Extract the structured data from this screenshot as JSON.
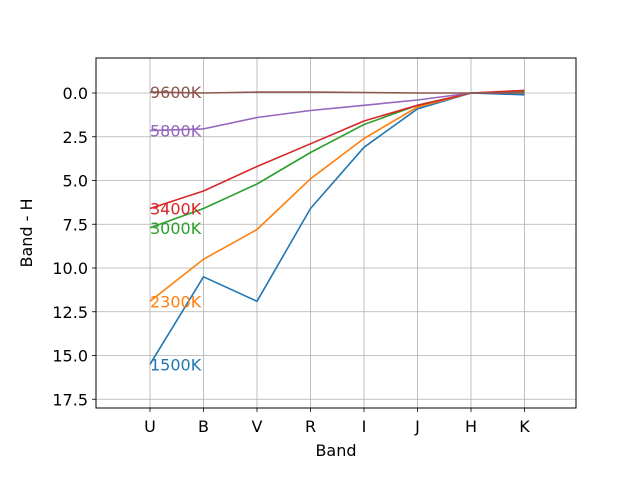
{
  "chart_data": {
    "type": "line",
    "title": "",
    "xlabel": "Band",
    "ylabel": "Band - H",
    "categories": [
      "U",
      "B",
      "V",
      "R",
      "I",
      "J",
      "H",
      "K"
    ],
    "ylim": [
      18.0,
      -2.0
    ],
    "y_inverted": true,
    "yticks": [
      "0.0",
      "2.5",
      "5.0",
      "7.5",
      "10.0",
      "12.5",
      "15.0",
      "17.5"
    ],
    "grid": true,
    "legend": "none",
    "series": [
      {
        "name": "1500K",
        "color": "#1f77b4",
        "values": [
          15.5,
          10.5,
          11.9,
          6.6,
          3.1,
          0.9,
          0.0,
          0.1
        ]
      },
      {
        "name": "2300K",
        "color": "#ff7f0e",
        "values": [
          11.9,
          9.5,
          7.8,
          4.9,
          2.6,
          0.8,
          0.0,
          -0.1
        ]
      },
      {
        "name": "3000K",
        "color": "#2ca02c",
        "values": [
          7.7,
          6.6,
          5.2,
          3.4,
          1.8,
          0.7,
          0.0,
          -0.1
        ]
      },
      {
        "name": "3400K",
        "color": "#d62728",
        "values": [
          6.6,
          5.6,
          4.2,
          2.9,
          1.6,
          0.7,
          0.0,
          -0.15
        ]
      },
      {
        "name": "5800K",
        "color": "#9467bd",
        "values": [
          2.15,
          2.05,
          1.4,
          1.0,
          0.7,
          0.4,
          0.0,
          0.0
        ]
      },
      {
        "name": "9600K",
        "color": "#8c564b",
        "values": [
          -0.05,
          0.0,
          -0.05,
          -0.05,
          -0.03,
          0.0,
          0.0,
          0.0
        ]
      }
    ]
  }
}
